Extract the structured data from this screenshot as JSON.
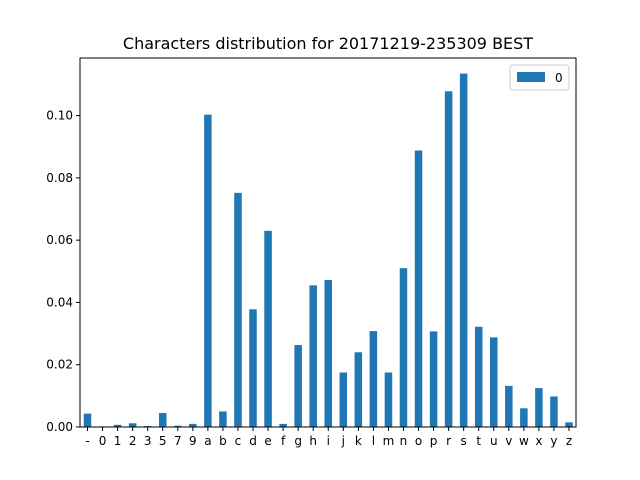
{
  "chart_data": {
    "type": "bar",
    "title": "Characters distribution for 20171219-235309 BEST",
    "xlabel": "",
    "ylabel": "",
    "categories": [
      "-",
      "0",
      "1",
      "2",
      "3",
      "5",
      "7",
      "9",
      "a",
      "b",
      "c",
      "d",
      "e",
      "f",
      "g",
      "h",
      "i",
      "j",
      "k",
      "l",
      "m",
      "n",
      "o",
      "p",
      "r",
      "s",
      "t",
      "u",
      "v",
      "w",
      "x",
      "y",
      "z"
    ],
    "series": [
      {
        "name": "0",
        "values": [
          0.0043,
          0.0002,
          0.0007,
          0.0012,
          0.0003,
          0.0045,
          0.0004,
          0.001,
          0.1003,
          0.005,
          0.0752,
          0.0378,
          0.063,
          0.001,
          0.0263,
          0.0455,
          0.0472,
          0.0175,
          0.024,
          0.0308,
          0.0175,
          0.051,
          0.0888,
          0.0307,
          0.1078,
          0.1135,
          0.0322,
          0.0288,
          0.0132,
          0.006,
          0.0125,
          0.0098,
          0.0015
        ],
        "color": "#1f77b4"
      }
    ],
    "ylim": [
      0,
      0.1185
    ],
    "yticks": [
      0.0,
      0.02,
      0.04,
      0.06,
      0.08,
      0.1
    ],
    "ytick_labels": [
      "0.00",
      "0.02",
      "0.04",
      "0.06",
      "0.08",
      "0.10"
    ],
    "grid": false,
    "legend_position": "top-right"
  }
}
